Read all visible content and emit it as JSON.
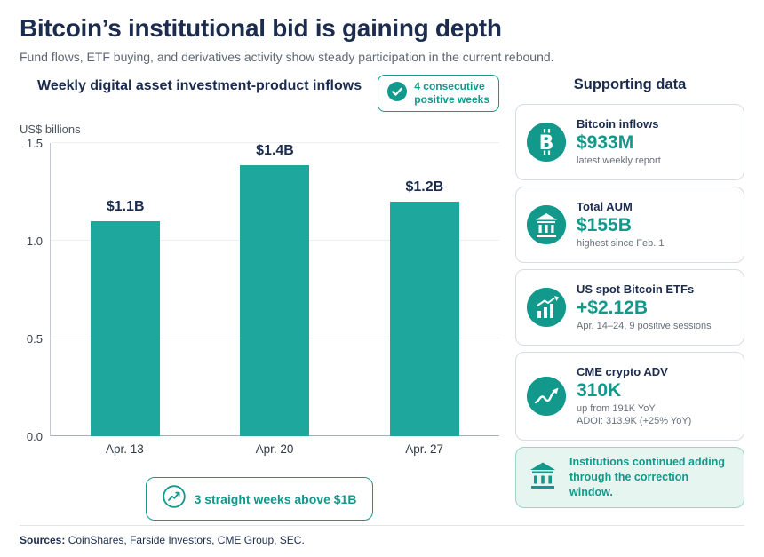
{
  "colors": {
    "accent": "#12998c",
    "bar": "#1ea79d",
    "navy": "#1b2c4e",
    "muted_gray": "#5c6773",
    "card_border": "#d8dde2",
    "highlight_bg": "#e7f5f1"
  },
  "header": {
    "title": "Bitcoin’s institutional bid is gaining depth",
    "subtitle": "Fund flows, ETF buying, and derivatives activity show steady participation in the current rebound."
  },
  "chart": {
    "title": "Weekly digital asset investment-product inflows",
    "unit": "US$ billions",
    "badge": {
      "icon": "check-circle-icon",
      "line1": "4 consecutive",
      "line2": "positive weeks"
    },
    "footer_badge": {
      "icon": "trend-chart-icon",
      "label": "3 straight weeks above $1B"
    }
  },
  "chart_data": {
    "type": "bar",
    "title": "Weekly digital asset investment-product inflows",
    "categories": [
      "Apr. 13",
      "Apr. 20",
      "Apr. 27"
    ],
    "values": [
      1.1,
      1.4,
      1.2
    ],
    "labels": [
      "$1.1B",
      "$1.4B",
      "$1.2B"
    ],
    "xlabel": "",
    "ylabel": "US$ billions",
    "ylim": [
      0,
      1.5
    ],
    "yticks": [
      "0.0",
      "0.5",
      "1.0",
      "1.5"
    ],
    "grid": true,
    "legend": false,
    "bar_color": "#1ea79d"
  },
  "supporting": {
    "title": "Supporting data",
    "cards": [
      {
        "icon": "bitcoin-icon",
        "title": "Bitcoin inflows",
        "value": "$933M",
        "note": "latest weekly report"
      },
      {
        "icon": "bank-icon",
        "title": "Total AUM",
        "value": "$155B",
        "note": "highest since Feb. 1"
      },
      {
        "icon": "bar-chart-icon",
        "title": "US spot Bitcoin ETFs",
        "value": "+$2.12B",
        "note": "Apr. 14–24, 9 positive sessions"
      },
      {
        "icon": "line-chart-icon",
        "title": "CME crypto ADV",
        "value": "310K",
        "note": "up from 191K YoY",
        "note2": "ADOI: 313.9K (+25% YoY)"
      }
    ],
    "highlight": {
      "icon": "bank-icon",
      "text": "Institutions continued adding through the correction window."
    }
  },
  "footer": {
    "sources_label": "Sources:",
    "sources_text": "CoinShares, Farside Investors, CME Group, SEC."
  }
}
